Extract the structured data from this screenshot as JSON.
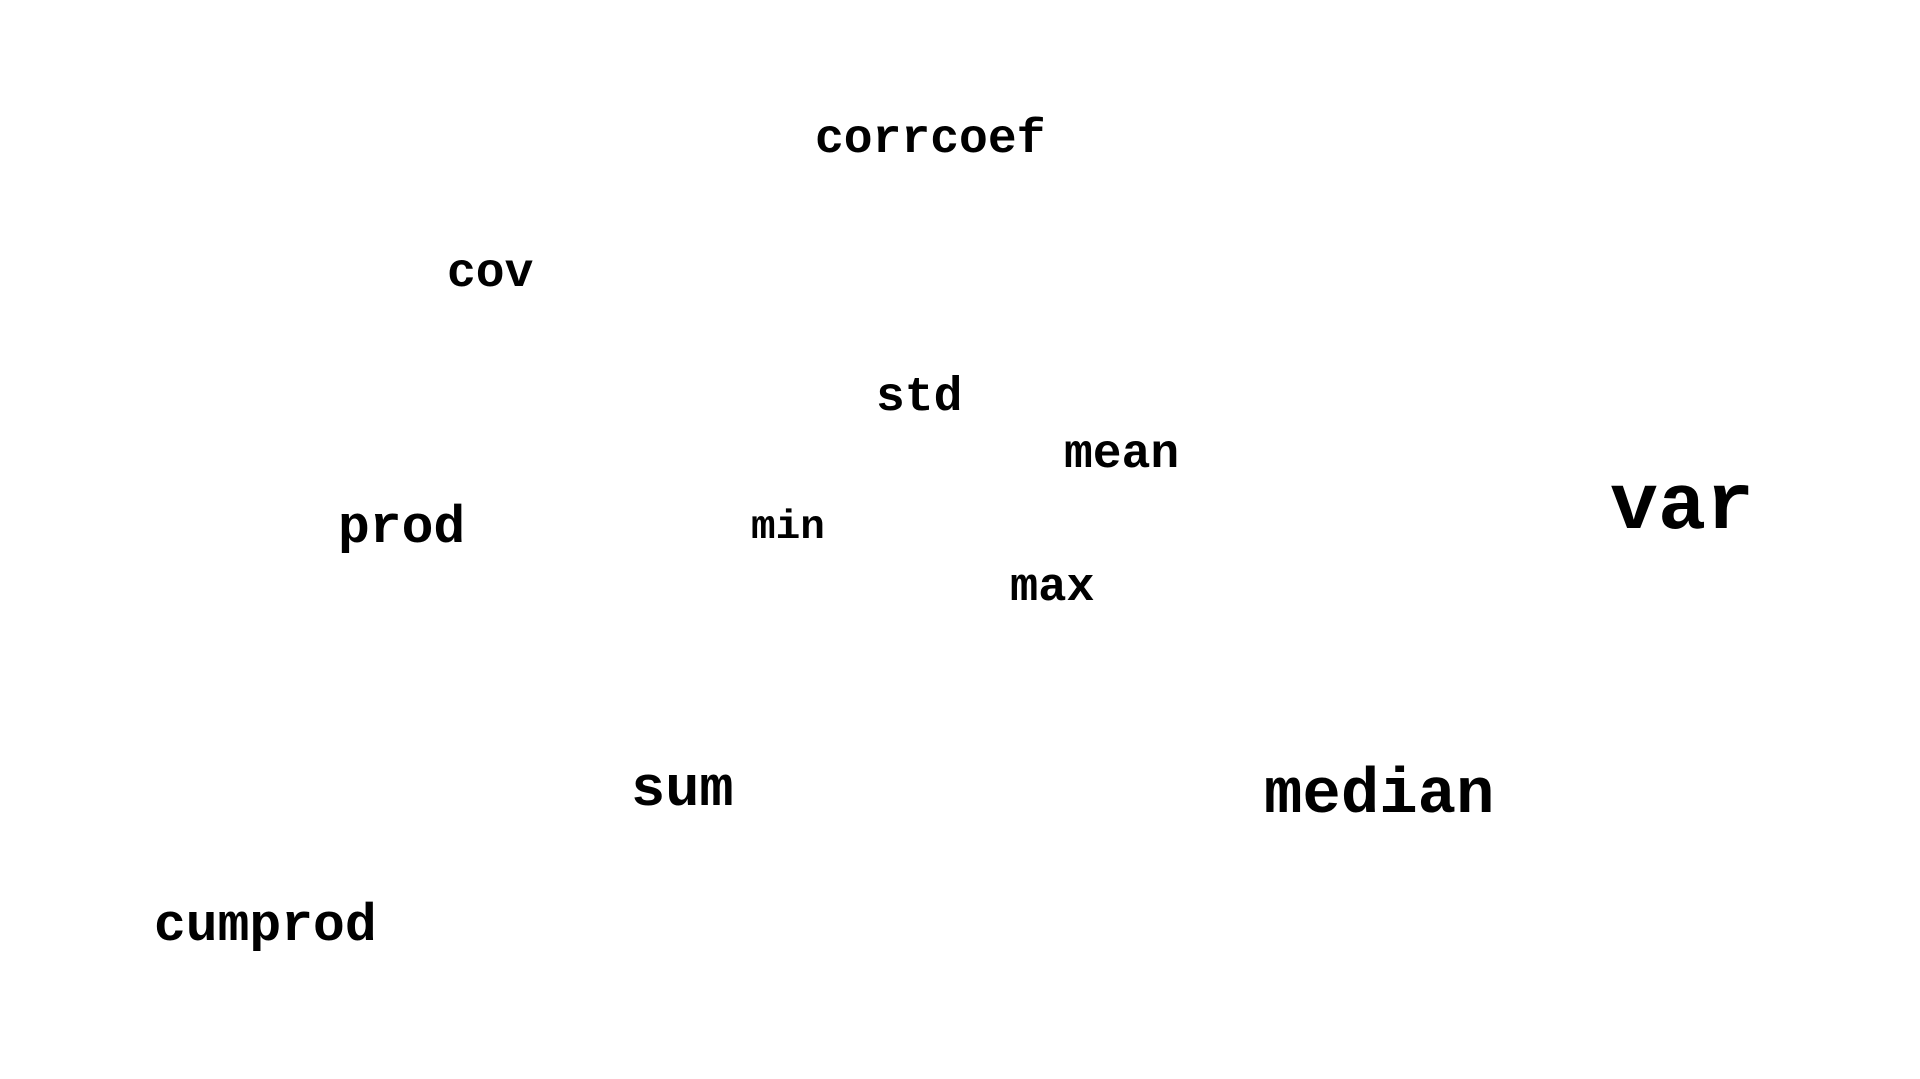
{
  "words": {
    "corrcoef": "corrcoef",
    "cov": "cov",
    "std": "std",
    "mean": "mean",
    "prod": "prod",
    "min": "min",
    "var": "var",
    "max": "max",
    "sum": "sum",
    "median": "median",
    "cumprod": "cumprod"
  },
  "colors": {
    "background": "#ffffff",
    "text": "#000000"
  }
}
